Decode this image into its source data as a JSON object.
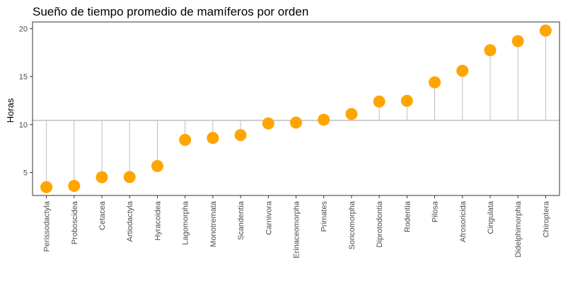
{
  "chart_data": {
    "type": "lollipop",
    "title": "Sueño de tiempo promedio de mamíferos por orden",
    "xlabel": "",
    "ylabel": "Horas",
    "categories": [
      "Perissodactyla",
      "Proboscidea",
      "Cetacea",
      "Artiodactyla",
      "Hyracoidea",
      "Lagomorpha",
      "Monotremata",
      "Scandentia",
      "Carnivora",
      "Erinaceomorpha",
      "Primates",
      "Soricomorpha",
      "Diprotodontia",
      "Rodentia",
      "Pilosa",
      "Afrosoricida",
      "Cingulata",
      "Didelphimorphia",
      "Chiroptera"
    ],
    "values": [
      3.47,
      3.6,
      4.5,
      4.52,
      5.67,
      8.4,
      8.6,
      8.9,
      10.12,
      10.2,
      10.5,
      11.1,
      12.4,
      12.47,
      14.4,
      15.6,
      17.75,
      18.7,
      19.8
    ],
    "reference_line": 10.43,
    "ylim": [
      2.6,
      20.7
    ],
    "yticks": [
      5,
      10,
      15,
      20
    ],
    "grid": false,
    "colors": {
      "point": "#FFA500",
      "stem": "#BEBEBE",
      "reference": "#BEBEBE",
      "axis": "#333333"
    }
  }
}
